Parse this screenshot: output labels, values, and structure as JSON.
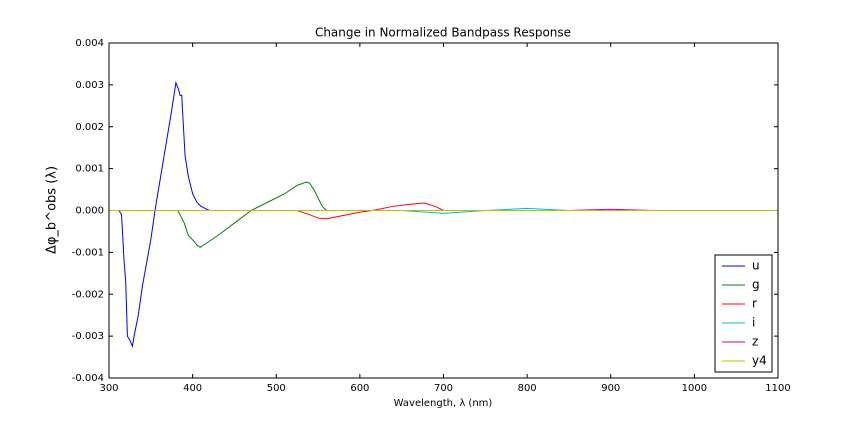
{
  "chart_data": {
    "type": "line",
    "title": "Change in Normalized Bandpass Response",
    "x_label": "Wavelength, λ (nm)",
    "y_label": "Δφ_b^obs (λ)",
    "xlim": [
      300,
      1100
    ],
    "ylim": [
      -0.004,
      0.004
    ],
    "xticks": [
      300,
      400,
      500,
      600,
      700,
      800,
      900,
      1000,
      1100
    ],
    "yticks": [
      -0.004,
      -0.003,
      -0.002,
      -0.001,
      {
        "value": 0,
        "label": "0.000"
      },
      0.001,
      0.002,
      0.003,
      0.004
    ],
    "legend": "lower right",
    "series": [
      {
        "name": "u",
        "color": "#0000ff",
        "x": [
          300,
          312,
          315,
          318,
          320,
          322,
          325,
          328,
          330,
          335,
          340,
          350,
          355,
          365,
          375,
          380,
          383,
          385,
          387,
          389,
          391,
          395,
          400,
          405,
          410,
          415,
          420,
          1100
        ],
        "values": [
          0,
          0,
          -0.0001,
          -0.0012,
          -0.0017,
          -0.003,
          -0.0031,
          -0.00324,
          -0.003,
          -0.0025,
          -0.0018,
          -0.0007,
          0,
          0.0012,
          0.0024,
          0.00305,
          0.0029,
          0.00275,
          0.00275,
          0.002,
          0.0013,
          0.0008,
          0.0004,
          0.0002,
          0.0001,
          5e-05,
          0,
          0
        ]
      },
      {
        "name": "g",
        "color": "#008000",
        "x": [
          300,
          382,
          385,
          390,
          395,
          400,
          405,
          409,
          415,
          430,
          450,
          470,
          490,
          510,
          525,
          536,
          540,
          545,
          550,
          555,
          560,
          1100
        ],
        "values": [
          0,
          0,
          -0.0001,
          -0.0003,
          -0.0006,
          -0.0007,
          -0.00082,
          -0.00088,
          -0.0008,
          -0.0006,
          -0.0003,
          0,
          0.0002,
          0.0004,
          0.0006,
          0.00068,
          0.00065,
          0.0005,
          0.0003,
          0.0001,
          0,
          0
        ]
      },
      {
        "name": "r",
        "color": "#ff0000",
        "x": [
          300,
          525,
          540,
          550,
          560,
          580,
          600,
          615,
          640,
          660,
          677,
          690,
          700,
          1100
        ],
        "values": [
          0,
          0,
          -0.0001,
          -0.00018,
          -0.0002,
          -0.00012,
          -4e-05,
          0,
          0.0001,
          0.00015,
          0.00018,
          0.0001,
          0,
          0
        ]
      },
      {
        "name": "i",
        "color": "#00bfbf",
        "x": [
          300,
          650,
          700,
          750,
          800,
          850,
          1100
        ],
        "values": [
          0,
          0,
          -7e-05,
          0,
          5e-05,
          0,
          0
        ]
      },
      {
        "name": "z",
        "color": "#bf00bf",
        "x": [
          300,
          850,
          900,
          950,
          1100
        ],
        "values": [
          0,
          0,
          3e-05,
          0,
          0
        ]
      },
      {
        "name": "y4",
        "color": "#bfbf00",
        "x": [
          300,
          1100
        ],
        "values": [
          0,
          0
        ]
      }
    ]
  }
}
